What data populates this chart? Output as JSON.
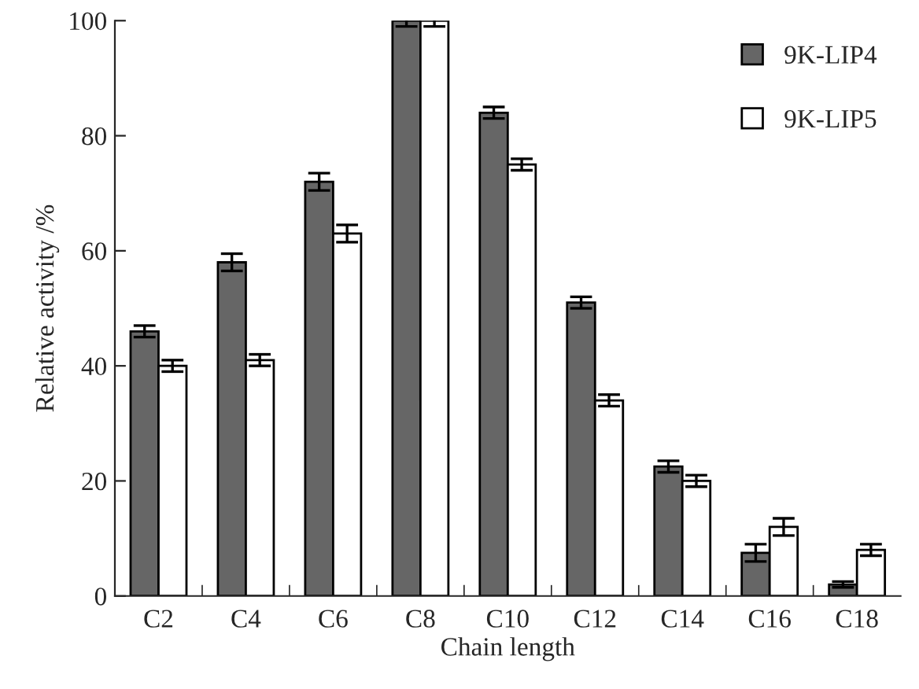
{
  "chart_data": {
    "type": "bar",
    "xlabel": "Chain length",
    "ylabel": "Relative activity /%",
    "categories": [
      "C2",
      "C4",
      "C6",
      "C8",
      "C10",
      "C12",
      "C14",
      "C16",
      "C18"
    ],
    "series": [
      {
        "name": "9K-LIP4",
        "color": "#666666",
        "values": [
          46,
          58,
          72,
          100,
          84,
          51,
          22.5,
          7.5,
          2
        ],
        "errors": [
          1,
          1.5,
          1.5,
          1,
          1,
          1,
          1,
          1.5,
          0.5
        ]
      },
      {
        "name": "9K-LIP5",
        "color": "#ffffff",
        "values": [
          40,
          41,
          63,
          100,
          75,
          34,
          20,
          12,
          8
        ],
        "errors": [
          1,
          1,
          1.5,
          1,
          1,
          1,
          1,
          1.5,
          1
        ]
      }
    ],
    "ylim": [
      0,
      100
    ],
    "yticks": [
      0,
      20,
      40,
      60,
      80,
      100
    ],
    "grid": false,
    "legend": "top right"
  }
}
